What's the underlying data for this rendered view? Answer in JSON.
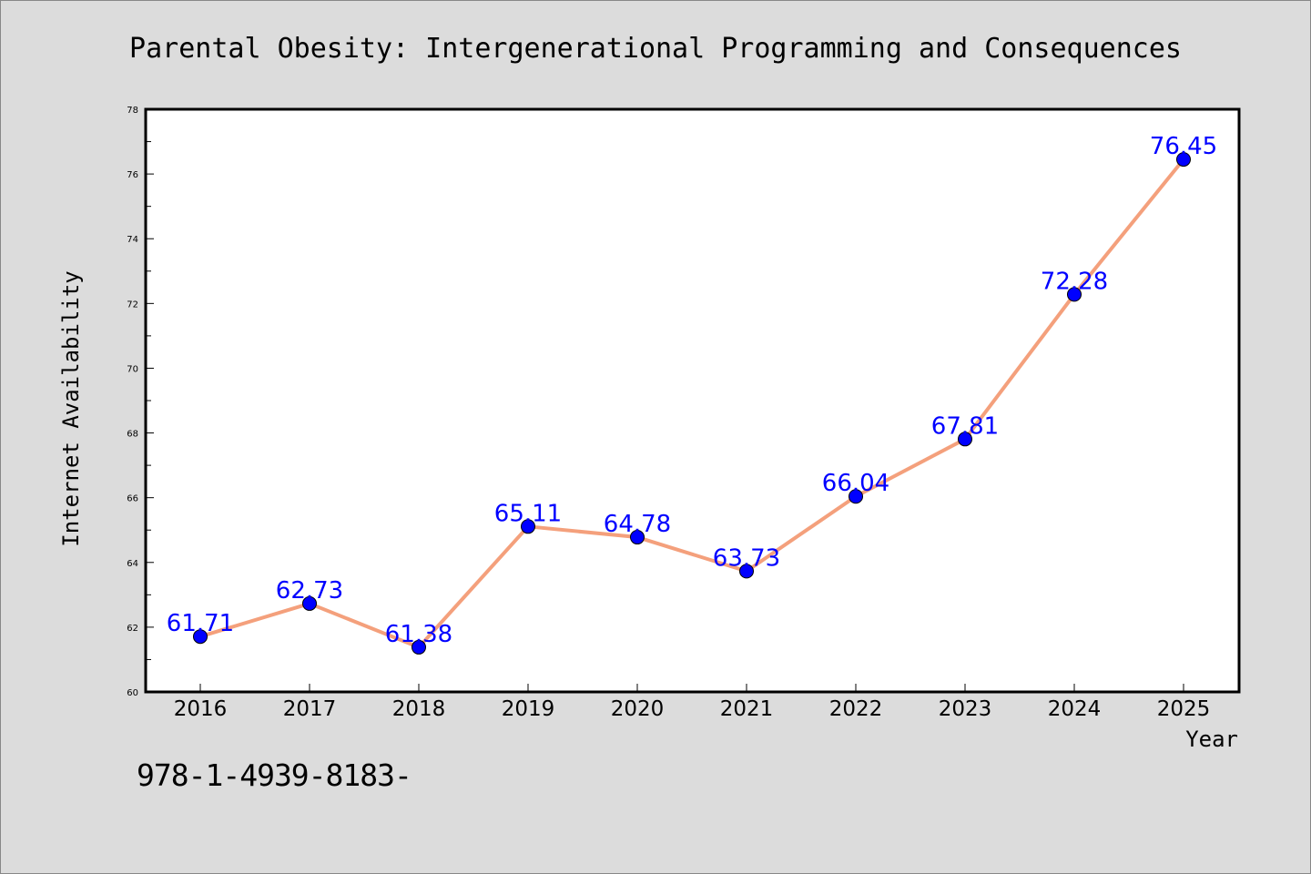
{
  "footer": {
    "isbn": "978-1-4939-8183-"
  },
  "colors": {
    "background": "#dcdcdc",
    "line": "#f4a07c",
    "marker": "#0000ff",
    "data_label": "#0000ff"
  },
  "chart_data": {
    "type": "line",
    "title": "Parental Obesity: Intergenerational Programming and Consequences",
    "xlabel": "Year",
    "ylabel": "Internet Availability",
    "categories": [
      "2016",
      "2017",
      "2018",
      "2019",
      "2020",
      "2021",
      "2022",
      "2023",
      "2024",
      "2025"
    ],
    "values": [
      61.71,
      62.73,
      61.38,
      65.11,
      64.78,
      63.73,
      66.04,
      67.81,
      72.28,
      76.45
    ],
    "data_labels": [
      "61.71",
      "62.73",
      "61.38",
      "65.11",
      "64.78",
      "63.73",
      "66.04",
      "67.81",
      "72.28",
      "76.45"
    ],
    "ylim": [
      60,
      78
    ],
    "yticks": [
      "60",
      "62",
      "64",
      "66",
      "68",
      "70",
      "72",
      "74",
      "76",
      "78"
    ],
    "grid": false,
    "legend": "none"
  }
}
